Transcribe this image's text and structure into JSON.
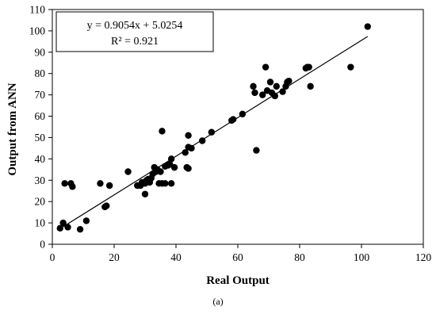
{
  "chart_data": {
    "type": "scatter",
    "xlabel": "Real Output",
    "ylabel": "Output from ANN",
    "xlim": [
      0,
      120
    ],
    "ylim": [
      0,
      110
    ],
    "xticks": [
      0,
      20,
      40,
      60,
      80,
      100,
      120
    ],
    "yticks": [
      0,
      10,
      20,
      30,
      40,
      50,
      60,
      70,
      80,
      90,
      100,
      110
    ],
    "grid": false,
    "legend": "none",
    "annotation": {
      "equation": "y = 0.9054x + 5.0254",
      "r_squared": "R² = 0.921",
      "placement": "top-left"
    },
    "caption": "(a)",
    "trendline": {
      "slope": 0.9054,
      "intercept": 5.0254,
      "x_range": [
        3,
        102
      ]
    },
    "colors": {
      "marker": "#000000",
      "line": "#000000",
      "axis": "#000000"
    },
    "points": [
      [
        2.5,
        7.5
      ],
      [
        3.5,
        10
      ],
      [
        5,
        8
      ],
      [
        9,
        7
      ],
      [
        11,
        11
      ],
      [
        4,
        28.5
      ],
      [
        6,
        28.5
      ],
      [
        6.5,
        27
      ],
      [
        15.5,
        28.5
      ],
      [
        18.5,
        27.5
      ],
      [
        17,
        17.5
      ],
      [
        17.5,
        18
      ],
      [
        24.5,
        34
      ],
      [
        27.5,
        27.5
      ],
      [
        28.5,
        27.5
      ],
      [
        29,
        29
      ],
      [
        30,
        28.5
      ],
      [
        30.5,
        30
      ],
      [
        31,
        30.5
      ],
      [
        31.5,
        29
      ],
      [
        32,
        31
      ],
      [
        32.5,
        33
      ],
      [
        33,
        36
      ],
      [
        33.5,
        34
      ],
      [
        34,
        35
      ],
      [
        35,
        34
      ],
      [
        34.5,
        28.5
      ],
      [
        35.5,
        28.5
      ],
      [
        36.5,
        28.5
      ],
      [
        38.5,
        28.5
      ],
      [
        30,
        23.5
      ],
      [
        35.5,
        53
      ],
      [
        36.5,
        36.5
      ],
      [
        37.5,
        37
      ],
      [
        38,
        37.5
      ],
      [
        38.5,
        40
      ],
      [
        39.5,
        36
      ],
      [
        43,
        43
      ],
      [
        43.5,
        36
      ],
      [
        44,
        35.5
      ],
      [
        44,
        51
      ],
      [
        44,
        45.5
      ],
      [
        45,
        45
      ],
      [
        48.5,
        48.5
      ],
      [
        51.5,
        52.5
      ],
      [
        58,
        58
      ],
      [
        58.5,
        58.5
      ],
      [
        61.5,
        61
      ],
      [
        65,
        74
      ],
      [
        65.5,
        71
      ],
      [
        66,
        44
      ],
      [
        68,
        70
      ],
      [
        69,
        83
      ],
      [
        69.5,
        72
      ],
      [
        70.5,
        76
      ],
      [
        71,
        71
      ],
      [
        72,
        69.5
      ],
      [
        72.5,
        74
      ],
      [
        74.5,
        71.5
      ],
      [
        75.5,
        74
      ],
      [
        76,
        76
      ],
      [
        76.5,
        76.5
      ],
      [
        82,
        82.5
      ],
      [
        82.5,
        83
      ],
      [
        83,
        83
      ],
      [
        83.5,
        74
      ],
      [
        96.5,
        83
      ],
      [
        102,
        102
      ]
    ]
  }
}
